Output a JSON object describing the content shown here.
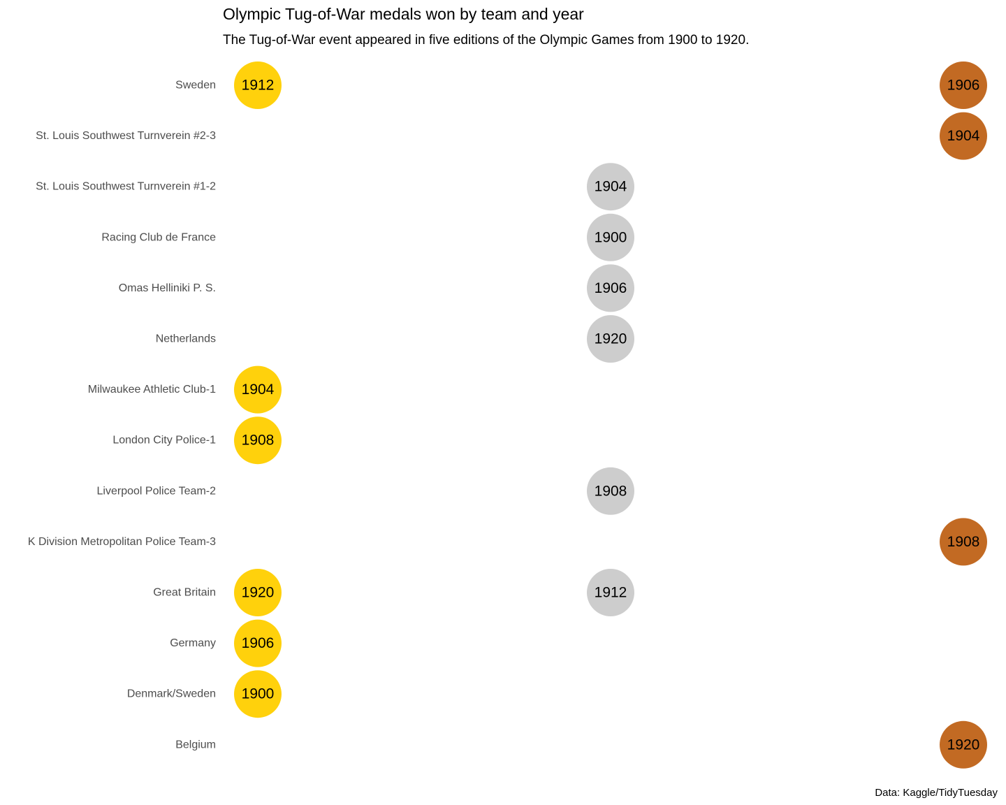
{
  "chart_data": {
    "type": "scatter",
    "title": "Olympic Tug-of-War medals won by team and year",
    "subtitle": "The Tug-of-War event appeared in five editions of the Olympic Games from 1900 to 1920.",
    "caption": "Data: Kaggle/TidyTuesday",
    "x_categories": [
      "Gold",
      "Silver",
      "Bronze"
    ],
    "y_categories": [
      "Sweden",
      "St. Louis Southwest Turnverein #2-3",
      "St. Louis Southwest Turnverein #1-2",
      "Racing Club de France",
      "Omas Helliniki P. S.",
      "Netherlands",
      "Milwaukee Athletic Club-1",
      "London City Police-1",
      "Liverpool Police Team-2",
      "K Division Metropolitan Police Team-3",
      "Great Britain",
      "Germany",
      "Denmark/Sweden",
      "Belgium"
    ],
    "medal_colors": {
      "Gold": "#FFD10C",
      "Silver": "#CDCDCD",
      "Bronze": "#C26A23"
    },
    "points": [
      {
        "team": "Sweden",
        "medal": "Gold",
        "year": "1912"
      },
      {
        "team": "Sweden",
        "medal": "Bronze",
        "year": "1906"
      },
      {
        "team": "St. Louis Southwest Turnverein #2-3",
        "medal": "Bronze",
        "year": "1904"
      },
      {
        "team": "St. Louis Southwest Turnverein #1-2",
        "medal": "Silver",
        "year": "1904"
      },
      {
        "team": "Racing Club de France",
        "medal": "Silver",
        "year": "1900"
      },
      {
        "team": "Omas Helliniki P. S.",
        "medal": "Silver",
        "year": "1906"
      },
      {
        "team": "Netherlands",
        "medal": "Silver",
        "year": "1920"
      },
      {
        "team": "Milwaukee Athletic Club-1",
        "medal": "Gold",
        "year": "1904"
      },
      {
        "team": "London City Police-1",
        "medal": "Gold",
        "year": "1908"
      },
      {
        "team": "Liverpool Police Team-2",
        "medal": "Silver",
        "year": "1908"
      },
      {
        "team": "K Division Metropolitan Police Team-3",
        "medal": "Bronze",
        "year": "1908"
      },
      {
        "team": "Great Britain",
        "medal": "Gold",
        "year": "1920"
      },
      {
        "team": "Great Britain",
        "medal": "Silver",
        "year": "1912"
      },
      {
        "team": "Germany",
        "medal": "Gold",
        "year": "1906"
      },
      {
        "team": "Denmark/Sweden",
        "medal": "Gold",
        "year": "1900"
      },
      {
        "team": "Belgium",
        "medal": "Bronze",
        "year": "1920"
      }
    ]
  }
}
